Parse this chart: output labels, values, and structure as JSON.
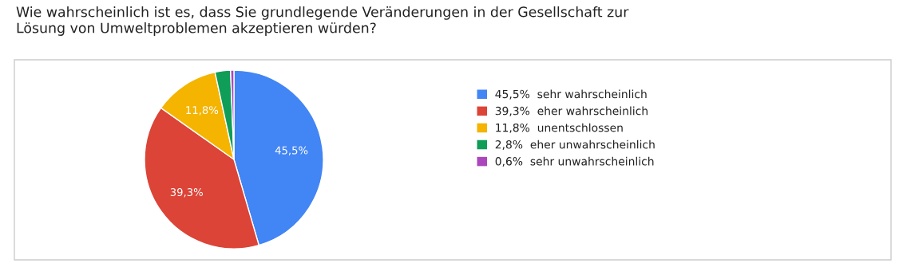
{
  "chart_data": {
    "type": "pie",
    "title": "Wie wahrscheinlich ist es, dass Sie grundlegende Veränderungen in der Gesellschaft zur\nLösung von Umweltproblemen akzeptieren würden?",
    "categories": [
      "sehr wahrscheinlich",
      "eher wahrscheinlich",
      "unentschlossen",
      "eher unwahrscheinlich",
      "sehr unwahrscheinlich"
    ],
    "values": [
      45.5,
      39.3,
      11.8,
      2.8,
      0.6
    ],
    "colors": [
      "#4285f4",
      "#db4437",
      "#f4b400",
      "#0f9d58",
      "#ab47bc"
    ],
    "value_labels": [
      "45,5%",
      "39,3%",
      "11,8%",
      "2,8%",
      "0,6%"
    ],
    "legend": "right"
  }
}
